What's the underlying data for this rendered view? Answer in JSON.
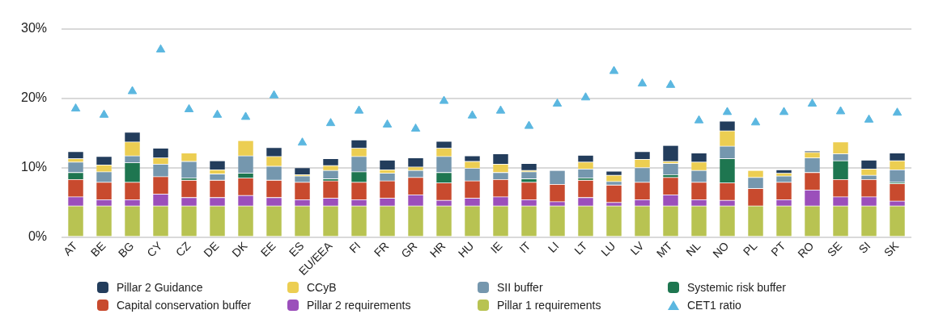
{
  "chart_data": {
    "type": "bar",
    "stacked": true,
    "categories": [
      "AT",
      "BE",
      "BG",
      "CY",
      "CZ",
      "DE",
      "DK",
      "EE",
      "ES",
      "EU/EEA",
      "FI",
      "FR",
      "GR",
      "HR",
      "HU",
      "IE",
      "IT",
      "LI",
      "LT",
      "LU",
      "LV",
      "MT",
      "NL",
      "NO",
      "PL",
      "PT",
      "RO",
      "SE",
      "SI",
      "SK"
    ],
    "series": [
      {
        "name": "Pillar 1 requirements",
        "color": "#b8c352",
        "values": [
          4.5,
          4.5,
          4.5,
          4.5,
          4.5,
          4.5,
          4.5,
          4.5,
          4.5,
          4.5,
          4.5,
          4.5,
          4.5,
          4.5,
          4.5,
          4.5,
          4.5,
          4.5,
          4.5,
          4.5,
          4.5,
          4.5,
          4.5,
          4.5,
          4.5,
          4.5,
          4.5,
          4.5,
          4.5,
          4.5
        ]
      },
      {
        "name": "Pillar 2 requirements",
        "color": "#9b4fbb",
        "values": [
          1.3,
          0.9,
          0.9,
          1.7,
          1.2,
          1.2,
          1.5,
          1.2,
          0.9,
          1.1,
          0.9,
          1.1,
          1.6,
          0.8,
          1.1,
          1.3,
          0.9,
          0.6,
          1.2,
          0.5,
          0.9,
          1.6,
          0.9,
          0.8,
          null,
          0.9,
          2.3,
          1.3,
          1.3,
          0.7
        ]
      },
      {
        "name": "Capital conservation buffer",
        "color": "#c84a2e",
        "values": [
          2.5,
          2.5,
          2.5,
          2.5,
          2.5,
          2.5,
          2.5,
          2.5,
          2.5,
          2.5,
          2.5,
          2.5,
          2.5,
          2.5,
          2.5,
          2.5,
          2.5,
          2.5,
          2.5,
          2.5,
          2.5,
          2.5,
          2.5,
          2.5,
          2.5,
          2.5,
          2.5,
          2.5,
          2.5,
          2.5
        ]
      },
      {
        "name": "Systemic risk buffer",
        "color": "#1e7650",
        "values": [
          1.0,
          null,
          2.8,
          null,
          0.3,
          null,
          0.7,
          null,
          null,
          0.3,
          1.5,
          null,
          null,
          1.5,
          null,
          null,
          0.5,
          null,
          0.3,
          null,
          null,
          0.4,
          null,
          3.5,
          null,
          null,
          null,
          2.7,
          null,
          0.2
        ]
      },
      {
        "name": "SII buffer",
        "color": "#7597ae",
        "values": [
          1.5,
          1.5,
          1.0,
          1.8,
          2.4,
          0.9,
          2.5,
          2.0,
          0.9,
          1.2,
          2.2,
          1.1,
          1.0,
          2.3,
          1.8,
          1.0,
          1.0,
          2.0,
          1.3,
          0.5,
          2.1,
          1.6,
          1.7,
          1.8,
          1.6,
          0.9,
          2.1,
          1.0,
          0.6,
          1.8
        ]
      },
      {
        "name": "CCyB",
        "color": "#ecce52",
        "values": [
          0.5,
          1.0,
          2.0,
          0.9,
          1.2,
          0.6,
          2.2,
          1.4,
          0.2,
          0.7,
          1.2,
          0.5,
          0.5,
          1.2,
          1.0,
          1.2,
          0.2,
          null,
          1.0,
          0.9,
          1.2,
          0.3,
          1.2,
          2.2,
          1.0,
          0.4,
          0.8,
          1.7,
          0.9,
          1.3
        ]
      },
      {
        "name": "Pillar 2 Guidance",
        "color": "#233d5c",
        "values": [
          1.0,
          1.2,
          1.4,
          1.4,
          null,
          1.3,
          null,
          1.3,
          1.0,
          1.0,
          1.2,
          1.4,
          1.3,
          1.0,
          0.8,
          1.5,
          1.0,
          null,
          1.0,
          0.6,
          1.1,
          2.3,
          1.3,
          1.4,
          null,
          0.5,
          0.2,
          null,
          1.3,
          1.1
        ]
      },
      {
        "name": "CET1 ratio",
        "type": "scatter",
        "marker": "triangle",
        "color": "#5bb7e0",
        "values": [
          18.5,
          17.6,
          21.0,
          27.0,
          18.4,
          17.6,
          17.3,
          20.4,
          13.6,
          16.4,
          18.2,
          16.2,
          15.6,
          19.6,
          17.5,
          18.2,
          16.0,
          19.2,
          20.1,
          23.9,
          22.1,
          21.9,
          16.8,
          18.0,
          16.5,
          18.0,
          19.2,
          18.1,
          16.9,
          17.9
        ]
      }
    ],
    "ylim": [
      0,
      30
    ],
    "yticks": [
      {
        "value": 0,
        "label": "0%"
      },
      {
        "value": 10,
        "label": "10%"
      },
      {
        "value": 20,
        "label": "20%"
      },
      {
        "value": 30,
        "label": "30%"
      }
    ],
    "grid": "y",
    "legend": "bottom"
  }
}
